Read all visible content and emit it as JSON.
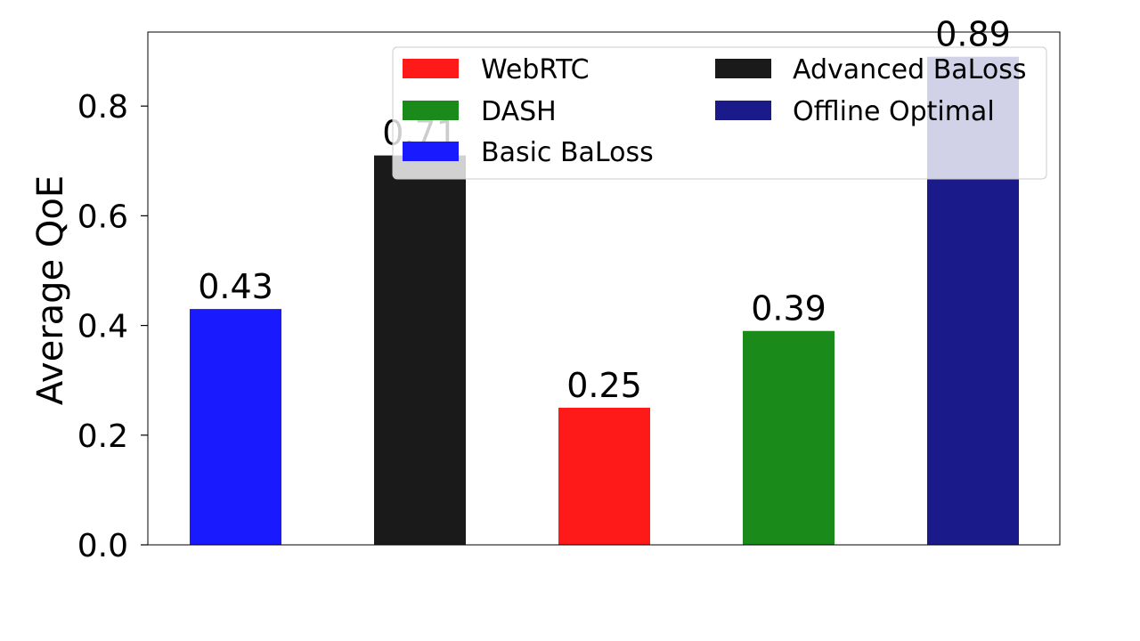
{
  "chart_data": {
    "type": "bar",
    "title": "",
    "xlabel": "",
    "ylabel": "Average QoE",
    "ylim": [
      0,
      0.935
    ],
    "yticks": [
      "0.0",
      "0.2",
      "0.4",
      "0.6",
      "0.8"
    ],
    "grid": false,
    "legend_position": "top-right",
    "series": [
      {
        "name": "Basic BaLoss",
        "value": 0.43,
        "label": "0.43",
        "color": "#1a1aff"
      },
      {
        "name": "Advanced BaLoss",
        "value": 0.71,
        "label": "0.71",
        "color": "#1a1a1a"
      },
      {
        "name": "WebRTC",
        "value": 0.25,
        "label": "0.25",
        "color": "#ff1a1a"
      },
      {
        "name": "DASH",
        "value": 0.39,
        "label": "0.39",
        "color": "#1a8a1a"
      },
      {
        "name": "Offline Optimal",
        "value": 0.89,
        "label": "0.89",
        "color": "#1a1a8a"
      }
    ],
    "legend_order": [
      "WebRTC",
      "DASH",
      "Basic BaLoss",
      "Advanced BaLoss",
      "Offline Optimal"
    ]
  }
}
